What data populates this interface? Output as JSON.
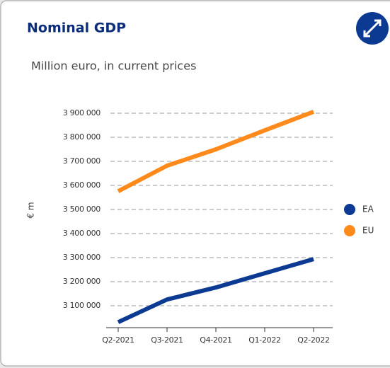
{
  "chart_data": {
    "type": "line",
    "title": "Nominal GDP",
    "subtitle": "Million euro, in current prices",
    "y_label": "€ m",
    "categories": [
      "Q2-2021",
      "Q3-2021",
      "Q4-2021",
      "Q1-2022",
      "Q2-2022"
    ],
    "series": [
      {
        "name": "EA",
        "color": "#0c3a93",
        "values": [
          3032000,
          3126000,
          3176000,
          3235000,
          3294000
        ]
      },
      {
        "name": "EU",
        "color": "#ff8a1c",
        "values": [
          3576000,
          3682000,
          3750000,
          3829000,
          3906000
        ]
      }
    ],
    "ylim": [
      3009000,
      3910000
    ],
    "yticks": [
      {
        "value": 3100000,
        "label": "3 100 000"
      },
      {
        "value": 3200000,
        "label": "3 200 000"
      },
      {
        "value": 3300000,
        "label": "3 300 000"
      },
      {
        "value": 3400000,
        "label": "3 400 000"
      },
      {
        "value": 3500000,
        "label": "3 500 000"
      },
      {
        "value": 3600000,
        "label": "3 600 000"
      },
      {
        "value": 3700000,
        "label": "3 700 000"
      },
      {
        "value": 3800000,
        "label": "3 800 000"
      },
      {
        "value": 3900000,
        "label": "3 900 000"
      }
    ],
    "grid": true,
    "legend": "right"
  }
}
